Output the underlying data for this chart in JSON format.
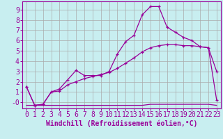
{
  "xlabel": "Windchill (Refroidissement éolien,°C)",
  "background_color": "#c8eef0",
  "line_color": "#990099",
  "xlim": [
    -0.5,
    23.5
  ],
  "ylim": [
    -0.6,
    9.8
  ],
  "xticks": [
    0,
    1,
    2,
    3,
    4,
    5,
    6,
    7,
    8,
    9,
    10,
    11,
    12,
    13,
    14,
    15,
    16,
    17,
    18,
    19,
    20,
    21,
    22,
    23
  ],
  "yticks": [
    0,
    1,
    2,
    3,
    4,
    5,
    6,
    7,
    8,
    9
  ],
  "ytick_labels": [
    "-0",
    "1",
    "2",
    "3",
    "4",
    "5",
    "6",
    "7",
    "8",
    "9"
  ],
  "line1_x": [
    0,
    1,
    2,
    3,
    4,
    5,
    6,
    7,
    8,
    9,
    10,
    11,
    12,
    13,
    14,
    15,
    16,
    17,
    18,
    19,
    20,
    21,
    22,
    23
  ],
  "line1_y": [
    1.5,
    -0.3,
    -0.2,
    1.0,
    1.3,
    2.2,
    3.1,
    2.6,
    2.6,
    2.6,
    3.0,
    4.7,
    5.9,
    6.5,
    8.5,
    9.3,
    9.3,
    7.3,
    6.8,
    6.3,
    6.0,
    5.4,
    5.3,
    3.0
  ],
  "line2_x": [
    0,
    1,
    2,
    3,
    4,
    5,
    6,
    7,
    8,
    9,
    10,
    11,
    12,
    13,
    14,
    15,
    16,
    17,
    18,
    19,
    20,
    21,
    22,
    23
  ],
  "line2_y": [
    1.5,
    -0.3,
    -0.2,
    1.0,
    1.1,
    1.7,
    2.0,
    2.3,
    2.5,
    2.7,
    2.9,
    3.3,
    3.8,
    4.3,
    4.9,
    5.3,
    5.5,
    5.6,
    5.6,
    5.5,
    5.5,
    5.4,
    5.3,
    0.2
  ],
  "line3_x": [
    0,
    1,
    2,
    3,
    4,
    5,
    6,
    7,
    8,
    9,
    10,
    11,
    12,
    13,
    14,
    15,
    16,
    17,
    18,
    19,
    20,
    21,
    22,
    23
  ],
  "line3_y": [
    -0.3,
    -0.3,
    -0.3,
    -0.3,
    -0.3,
    -0.3,
    -0.3,
    -0.3,
    -0.3,
    -0.3,
    -0.3,
    -0.3,
    -0.3,
    -0.3,
    -0.3,
    -0.2,
    -0.2,
    -0.2,
    -0.2,
    -0.2,
    -0.2,
    -0.2,
    -0.2,
    -0.3
  ],
  "grid_color": "#aaaaaa",
  "font_family": "monospace",
  "xlabel_fontsize": 7.0,
  "tick_fontsize": 7.0
}
